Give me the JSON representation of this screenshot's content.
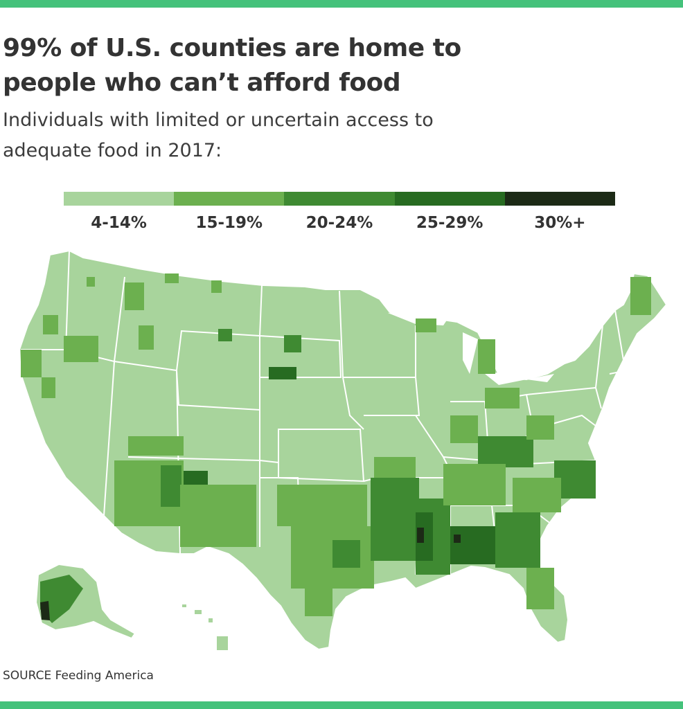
{
  "header": {
    "title": "99% of U.S. counties are home to people who can’t afford food",
    "subtitle": "Individuals with limited or uncertain access to adequate food in 2017:"
  },
  "legend": {
    "items": [
      {
        "label": "4-14%",
        "color": "#a8d49c"
      },
      {
        "label": "15-19%",
        "color": "#6cb04f"
      },
      {
        "label": "20-24%",
        "color": "#3f8a32"
      },
      {
        "label": "25-29%",
        "color": "#276b21"
      },
      {
        "label": "30%+",
        "color": "#1c2a16"
      }
    ]
  },
  "map": {
    "region": "United States (counties)",
    "base_fill": "#a8d49c",
    "border_color": "#ffffff"
  },
  "source": "SOURCE Feeding America",
  "colors": {
    "accent_rule": "#45c27b",
    "text": "#333333"
  }
}
